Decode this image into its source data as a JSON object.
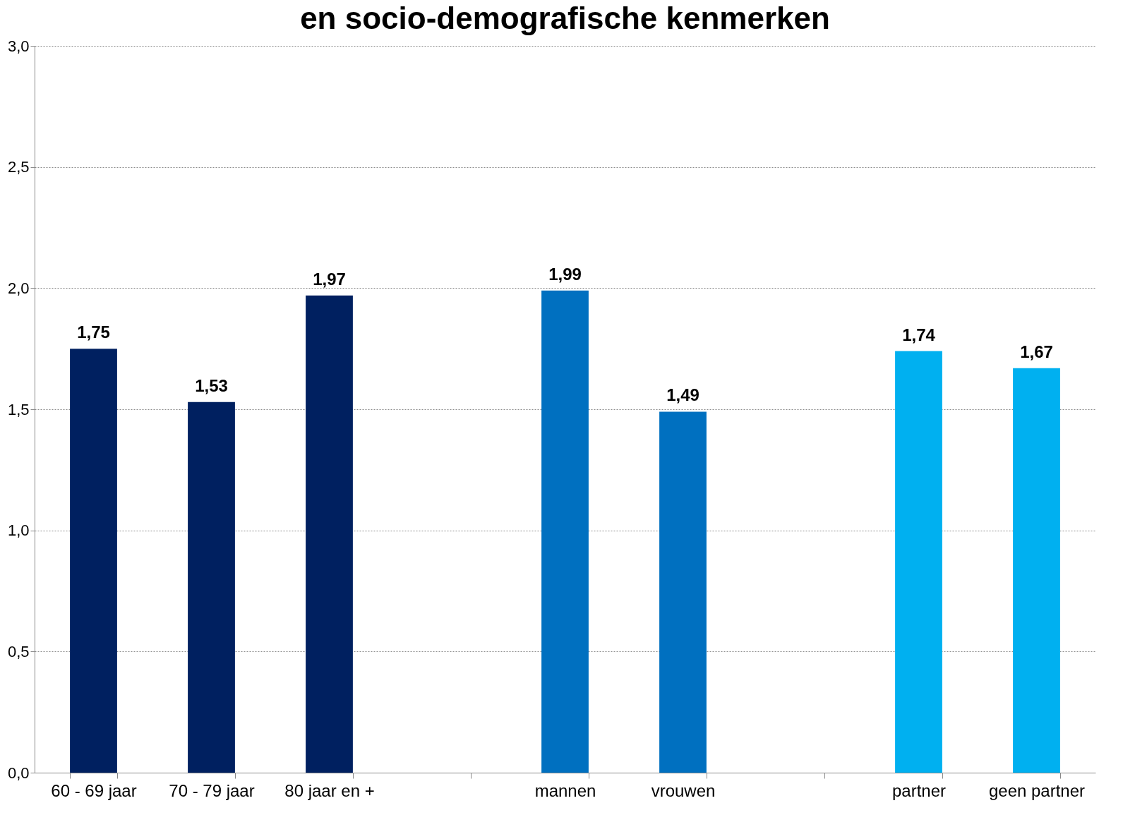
{
  "chart_data": {
    "type": "bar",
    "title": "en socio-demografische kenmerken",
    "categories": [
      "60 - 69 jaar",
      "70 - 79 jaar",
      "80 jaar en +",
      null,
      "mannen",
      "vrouwen",
      null,
      "partner",
      "geen partner"
    ],
    "values": [
      1.75,
      1.53,
      1.97,
      null,
      1.99,
      1.49,
      null,
      1.74,
      1.67
    ],
    "value_labels": [
      "1,75",
      "1,53",
      "1,97",
      null,
      "1,99",
      "1,49",
      null,
      "1,74",
      "1,67"
    ],
    "colors": [
      "#002060",
      "#002060",
      "#002060",
      null,
      "#0070c0",
      "#0070c0",
      null,
      "#00b0f0",
      "#00b0f0"
    ],
    "ylim": [
      0,
      3
    ],
    "yticks": [
      {
        "value": 0,
        "label": "0,0"
      },
      {
        "value": 0.5,
        "label": "0,5"
      },
      {
        "value": 1,
        "label": "1,0"
      },
      {
        "value": 1.5,
        "label": "1,5"
      },
      {
        "value": 2,
        "label": "2,0"
      },
      {
        "value": 2.5,
        "label": "2,5"
      },
      {
        "value": 3,
        "label": "3,0"
      }
    ],
    "grid": "y"
  }
}
